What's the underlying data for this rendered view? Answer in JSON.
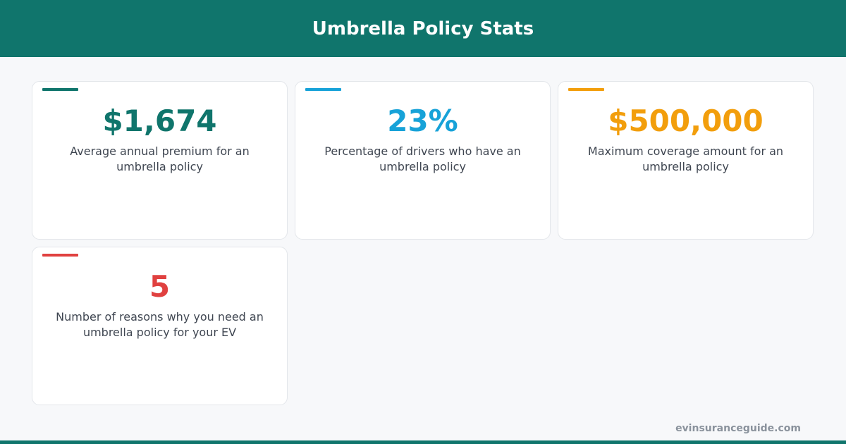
{
  "header": {
    "title": "Umbrella Policy Stats"
  },
  "stats": [
    {
      "value": "$1,674",
      "description": "Average annual premium for an umbrella policy",
      "color": "#10756c"
    },
    {
      "value": "23%",
      "description": "Percentage of drivers who have an umbrella policy",
      "color": "#17a2d8"
    },
    {
      "value": "$500,000",
      "description": "Maximum coverage amount for an umbrella policy",
      "color": "#f29e0c"
    },
    {
      "value": "5",
      "description": "Number of reasons why you need an umbrella policy for your EV",
      "color": "#e04140"
    }
  ],
  "footer": {
    "source": "evinsuranceguide.com"
  },
  "theme": {
    "brand": "#10756c",
    "background": "#f7f8fa"
  }
}
